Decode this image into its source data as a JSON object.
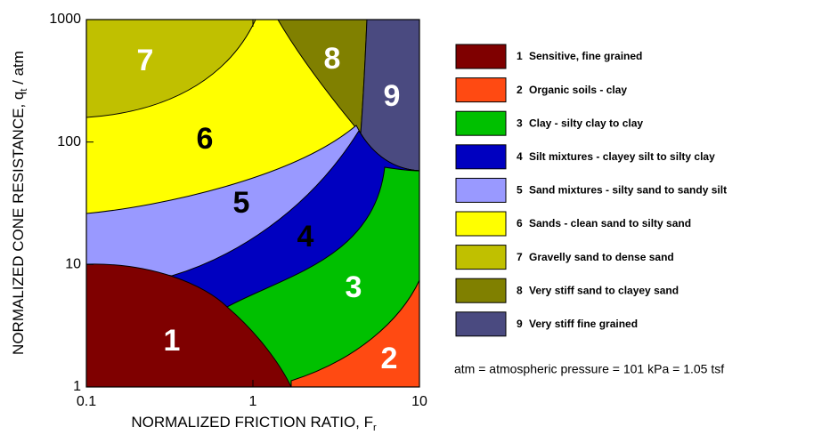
{
  "chart_data": {
    "type": "zones",
    "xscale": "log",
    "yscale": "log",
    "xlim": [
      0.1,
      10
    ],
    "ylim": [
      1,
      1000
    ],
    "xticks": [
      0.1,
      1,
      10
    ],
    "yticks": [
      1,
      10,
      100,
      1000
    ],
    "xlabel": {
      "text": "NORMALIZED FRICTION RATIO, F",
      "sub": "r"
    },
    "ylabel": {
      "text": "NORMALIZED CONE RESISTANCE, q",
      "sub": "t",
      "after": " / atm"
    },
    "zones": [
      {
        "number": 1,
        "label": "Sensitive, fine grained",
        "color": "#7f0000",
        "label_color": "#ffffff"
      },
      {
        "number": 2,
        "label": "Organic soils - clay",
        "color": "#ff4a12",
        "label_color": "#ffffff"
      },
      {
        "number": 3,
        "label": "Clay - silty clay to clay",
        "color": "#00c000",
        "label_color": "#ffffff"
      },
      {
        "number": 4,
        "label": "Silt mixtures - clayey silt to silty clay",
        "color": "#0000c0",
        "label_color": "#000000"
      },
      {
        "number": 5,
        "label": "Sand mixtures - silty sand to sandy silt",
        "color": "#9999ff",
        "label_color": "#000000"
      },
      {
        "number": 6,
        "label": "Sands - clean sand to silty sand",
        "color": "#ffff00",
        "label_color": "#000000"
      },
      {
        "number": 7,
        "label": "Gravelly sand to dense sand",
        "color": "#c0c000",
        "label_color": "#ffffff"
      },
      {
        "number": 8,
        "label": "Very stiff sand to clayey sand",
        "color": "#808000",
        "label_color": "#ffffff"
      },
      {
        "number": 9,
        "label": "Very stiff fine grained",
        "color": "#4a4a80",
        "label_color": "#ffffff"
      }
    ],
    "note": "atm = atmospheric pressure = 101 kPa = 1.05  tsf"
  }
}
